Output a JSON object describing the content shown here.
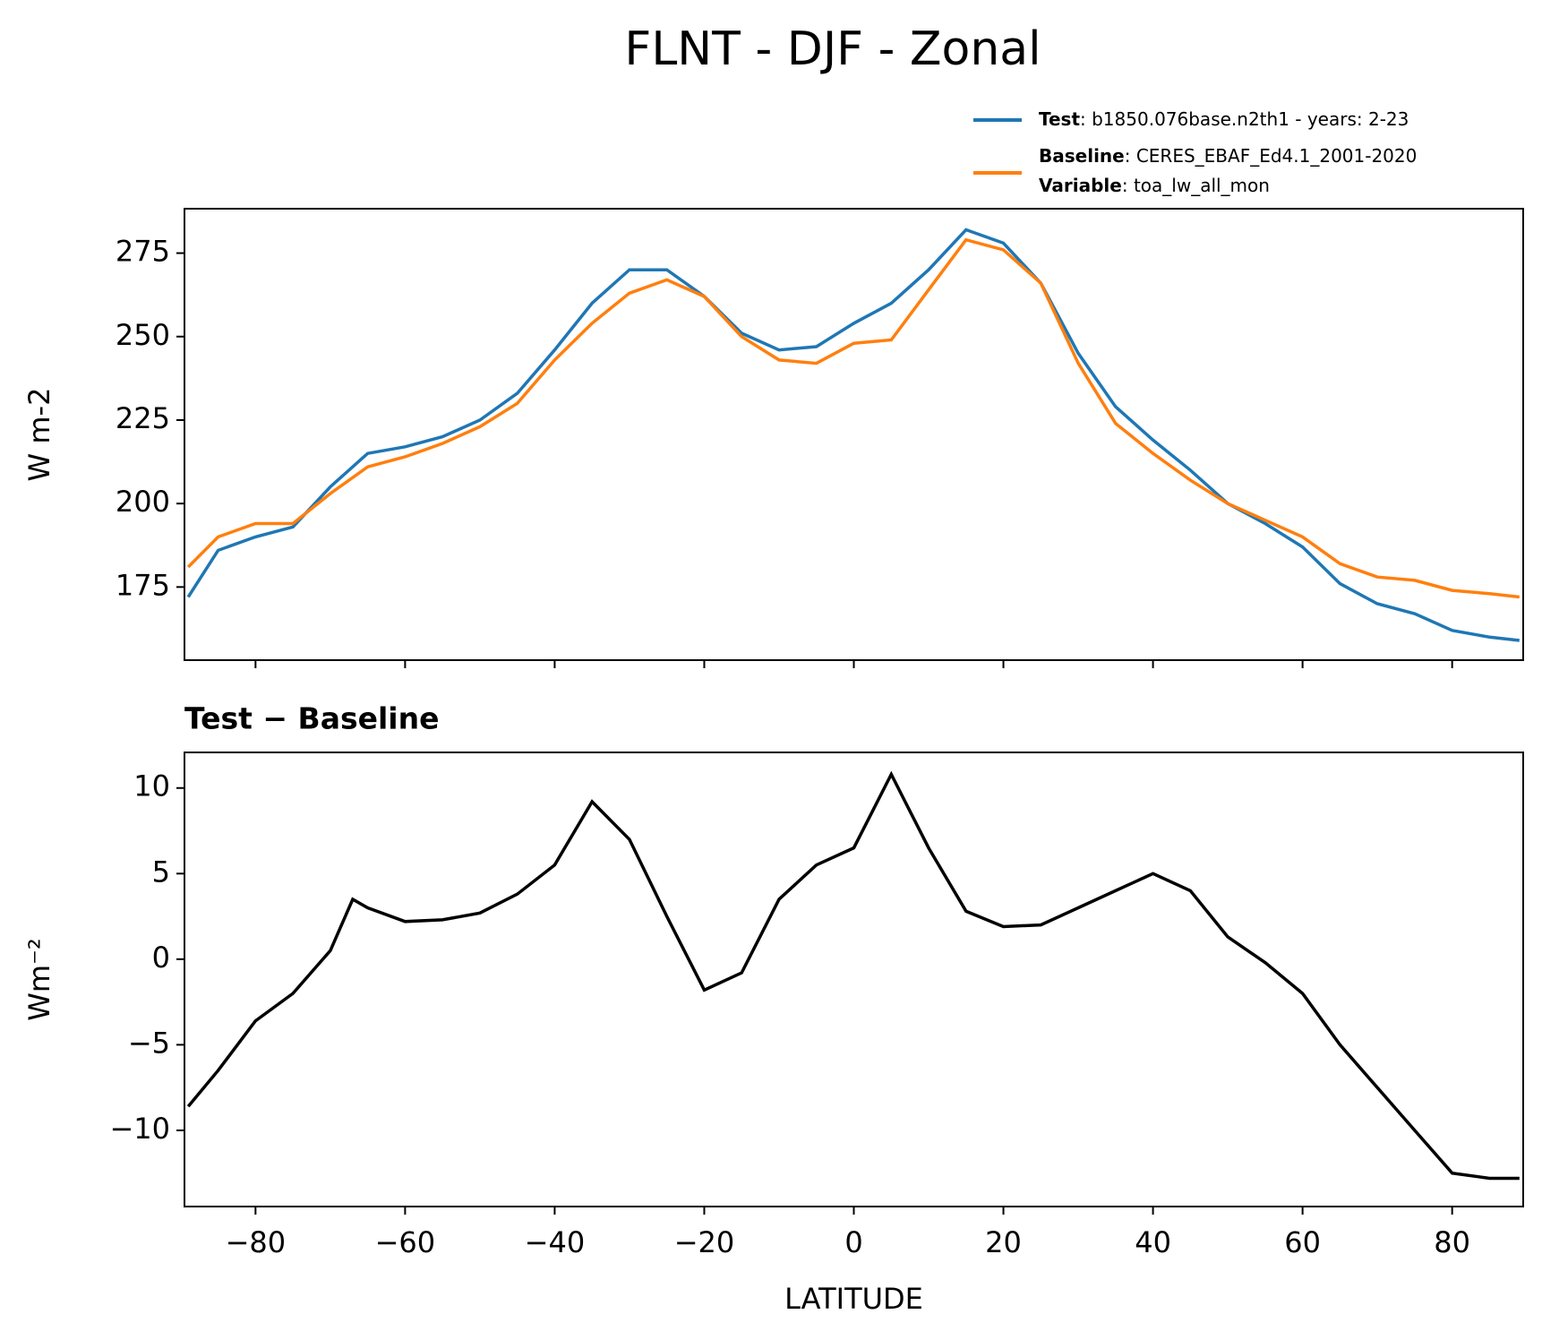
{
  "title": "FLNT - DJF - Zonal",
  "chart_data": [
    {
      "type": "line",
      "ylabel": "W m-2",
      "legend": [
        {
          "name": "Test",
          "detail": ": b1850.076base.n2th1 - years: 2-23"
        },
        {
          "name": "Baseline",
          "detail": ": CERES_EBAF_Ed4.1_2001-2020"
        },
        {
          "name": "Variable",
          "detail": ": toa_lw_all_mon"
        }
      ],
      "x": [
        -89,
        -85,
        -80,
        -75,
        -70,
        -65,
        -60,
        -55,
        -50,
        -45,
        -40,
        -35,
        -30,
        -25,
        -20,
        -15,
        -10,
        -5,
        0,
        5,
        10,
        15,
        20,
        25,
        30,
        35,
        40,
        45,
        50,
        55,
        60,
        65,
        70,
        75,
        80,
        85,
        89
      ],
      "series": [
        {
          "name": "Test",
          "color": "#1f77b4",
          "values": [
            172,
            186,
            190,
            193,
            205,
            215,
            217,
            220,
            225,
            233,
            246,
            260,
            270,
            270,
            262,
            251,
            246,
            247,
            254,
            260,
            270,
            282,
            278,
            266,
            245,
            229,
            219,
            210,
            200,
            194,
            187,
            176,
            170,
            167,
            162,
            160,
            159
          ]
        },
        {
          "name": "Baseline",
          "color": "#ff7f0e",
          "values": [
            181,
            190,
            194,
            194,
            203,
            211,
            214,
            218,
            223,
            230,
            243,
            254,
            263,
            267,
            262,
            250,
            243,
            242,
            248,
            249,
            264,
            279,
            276,
            266,
            242,
            224,
            215,
            207,
            200,
            195,
            190,
            182,
            178,
            177,
            174,
            173,
            172
          ]
        }
      ],
      "xlim": [
        -89.5,
        89.5
      ],
      "ylim": [
        153.1,
        288.3
      ],
      "xticks": [
        -80,
        -60,
        -40,
        -20,
        0,
        20,
        40,
        60,
        80
      ],
      "yticks": [
        175,
        200,
        225,
        250,
        275
      ]
    },
    {
      "type": "line",
      "title": "Test − Baseline",
      "xlabel": "LATITUDE",
      "ylabel": "Wm⁻²",
      "x": [
        -89,
        -85,
        -80,
        -75,
        -70,
        -67,
        -65,
        -60,
        -55,
        -50,
        -45,
        -40,
        -35,
        -30,
        -25,
        -20,
        -15,
        -10,
        -5,
        0,
        5,
        10,
        15,
        20,
        25,
        30,
        35,
        40,
        45,
        50,
        55,
        60,
        65,
        70,
        75,
        80,
        85,
        89
      ],
      "series": [
        {
          "name": "Test − Baseline",
          "color": "#000000",
          "values": [
            -8.6,
            -6.5,
            -3.6,
            -2,
            0.5,
            3.5,
            3,
            2.2,
            2.3,
            2.7,
            3.8,
            5.5,
            9.2,
            7,
            2.5,
            -1.8,
            -0.8,
            3.5,
            5.5,
            6.5,
            10.8,
            6.5,
            2.8,
            1.9,
            2,
            3,
            4,
            5,
            4,
            1.3,
            -0.2,
            -2,
            -5,
            -7.5,
            -10,
            -12.5,
            -12.8,
            -12.8
          ]
        }
      ],
      "xlim": [
        -89.5,
        89.5
      ],
      "ylim": [
        -14.45,
        12.08
      ],
      "xticks": [
        {
          "value": -80,
          "label": "−80"
        },
        {
          "value": -60,
          "label": "−60"
        },
        {
          "value": -40,
          "label": "−40"
        },
        {
          "value": -20,
          "label": "−20"
        },
        0,
        20,
        40,
        60,
        80
      ],
      "yticks": [
        {
          "value": -10,
          "label": "−10"
        },
        {
          "value": -5,
          "label": "−5"
        },
        0,
        5,
        10
      ]
    }
  ]
}
